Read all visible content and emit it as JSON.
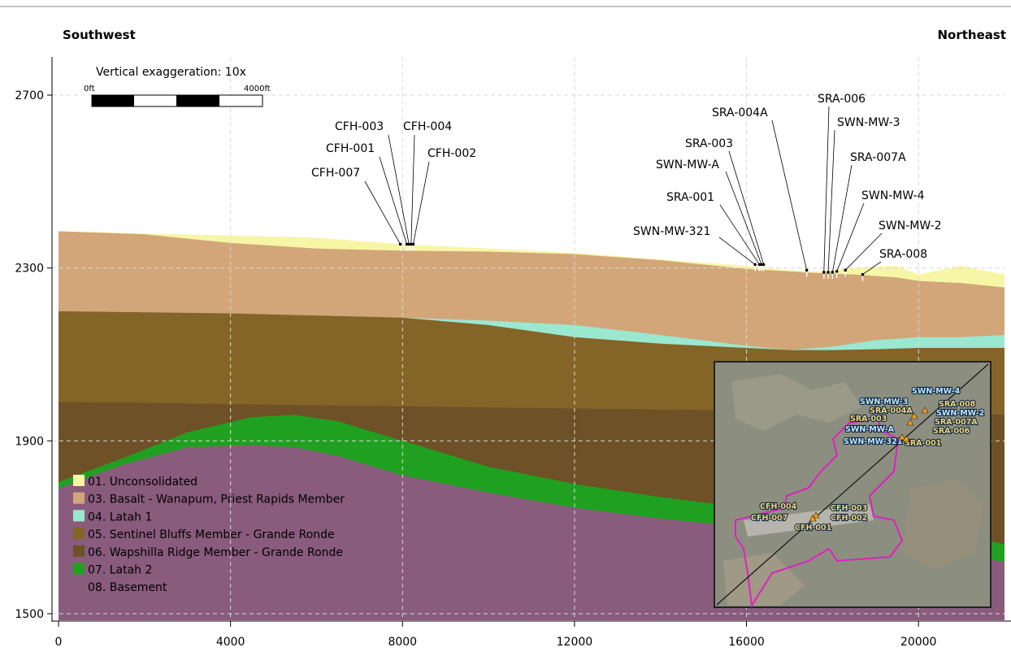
{
  "header": {
    "left_label": "Southwest",
    "right_label": "Northeast"
  },
  "scale_bar": {
    "title": "Vertical exaggeration: 10x",
    "start_label": "0ft",
    "end_label": "4000ft"
  },
  "colors": {
    "unconsolidated": "#f7f6a6",
    "basalt_wanapum": "#d2a679",
    "latah_1": "#9ae8d0",
    "sentinel_bluffs": "#856428",
    "wapshilla_ridge": "#6e5127",
    "latah_2": "#20a020",
    "basement": "#895b7d",
    "inset_boundary": "#e020c0"
  },
  "chart_data": {
    "type": "area",
    "title": "",
    "xlabel": "",
    "ylabel": "",
    "xlim": [
      0,
      22000
    ],
    "ylim": [
      1490,
      2810
    ],
    "x_ticks": [
      0,
      4000,
      8000,
      12000,
      16000,
      20000
    ],
    "y_ticks": [
      1500,
      1900,
      2300,
      2700
    ],
    "grid": true,
    "legend_position": "bottom-left",
    "layers": [
      {
        "name": "01. Unconsolidated",
        "color_key": "unconsolidated",
        "top": [
          [
            0,
            2385
          ],
          [
            2000,
            2380
          ],
          [
            4000,
            2375
          ],
          [
            6000,
            2370
          ],
          [
            8000,
            2355
          ],
          [
            10000,
            2345
          ],
          [
            12000,
            2335
          ],
          [
            14000,
            2320
          ],
          [
            16000,
            2305
          ],
          [
            17000,
            2295
          ],
          [
            17700,
            2292
          ],
          [
            18500,
            2300
          ],
          [
            19500,
            2305
          ],
          [
            20000,
            2285
          ],
          [
            21000,
            2305
          ],
          [
            22000,
            2285
          ]
        ]
      },
      {
        "name": "03. Basalt - Wanapum, Priest Rapids Member",
        "color_key": "basalt_wanapum",
        "top": [
          [
            0,
            2385
          ],
          [
            2000,
            2378
          ],
          [
            4000,
            2358
          ],
          [
            6000,
            2345
          ],
          [
            8000,
            2340
          ],
          [
            10000,
            2338
          ],
          [
            12000,
            2332
          ],
          [
            14000,
            2318
          ],
          [
            16000,
            2298
          ],
          [
            17000,
            2292
          ],
          [
            17700,
            2288
          ],
          [
            18500,
            2285
          ],
          [
            19500,
            2278
          ],
          [
            20000,
            2270
          ],
          [
            21000,
            2265
          ],
          [
            22000,
            2255
          ]
        ]
      },
      {
        "name": "04. Latah 1",
        "color_key": "latah_1",
        "top": [
          [
            0,
            2200
          ],
          [
            4000,
            2195
          ],
          [
            6000,
            2190
          ],
          [
            8000,
            2185
          ],
          [
            10000,
            2178
          ],
          [
            12000,
            2168
          ],
          [
            14000,
            2145
          ],
          [
            16000,
            2120
          ],
          [
            17000,
            2110
          ],
          [
            18000,
            2118
          ],
          [
            19000,
            2133
          ],
          [
            20000,
            2140
          ],
          [
            21000,
            2140
          ],
          [
            22000,
            2145
          ]
        ]
      },
      {
        "name": "05. Sentinel Bluffs Member - Grande Ronde",
        "color_key": "sentinel_bluffs",
        "top": [
          [
            0,
            2200
          ],
          [
            4000,
            2195
          ],
          [
            6000,
            2190
          ],
          [
            8000,
            2185
          ],
          [
            10000,
            2168
          ],
          [
            12000,
            2140
          ],
          [
            14000,
            2125
          ],
          [
            16000,
            2115
          ],
          [
            17000,
            2110
          ],
          [
            18000,
            2110
          ],
          [
            19000,
            2112
          ],
          [
            20000,
            2115
          ],
          [
            21000,
            2115
          ],
          [
            22000,
            2115
          ]
        ]
      },
      {
        "name": "06. Wapshilla Ridge Member - Grande Ronde",
        "color_key": "wapshilla_ridge",
        "top": [
          [
            0,
            1990
          ],
          [
            2000,
            1988
          ],
          [
            4000,
            1985
          ],
          [
            8000,
            1980
          ],
          [
            12000,
            1975
          ],
          [
            16000,
            1970
          ],
          [
            20000,
            1965
          ],
          [
            22000,
            1960
          ]
        ]
      },
      {
        "name": "07. Latah 2",
        "color_key": "latah_2",
        "top": [
          [
            0,
            1805
          ],
          [
            1500,
            1860
          ],
          [
            3000,
            1920
          ],
          [
            4500,
            1955
          ],
          [
            5500,
            1960
          ],
          [
            6500,
            1945
          ],
          [
            8000,
            1900
          ],
          [
            10000,
            1840
          ],
          [
            12000,
            1800
          ],
          [
            14000,
            1770
          ],
          [
            16000,
            1745
          ],
          [
            18000,
            1720
          ],
          [
            20000,
            1700
          ],
          [
            21000,
            1685
          ],
          [
            22000,
            1660
          ]
        ]
      },
      {
        "name": "08. Basement",
        "color_key": "basement",
        "top": [
          [
            0,
            1790
          ],
          [
            1500,
            1845
          ],
          [
            3000,
            1885
          ],
          [
            4500,
            1890
          ],
          [
            5500,
            1885
          ],
          [
            6500,
            1865
          ],
          [
            8000,
            1820
          ],
          [
            10000,
            1780
          ],
          [
            12000,
            1745
          ],
          [
            14000,
            1720
          ],
          [
            16000,
            1700
          ],
          [
            18000,
            1680
          ],
          [
            20000,
            1660
          ],
          [
            21000,
            1635
          ],
          [
            22000,
            1620
          ]
        ]
      }
    ],
    "wells": [
      {
        "label": "CFH-007",
        "x": 7950,
        "y": 2355
      },
      {
        "label": "CFH-001",
        "x": 8100,
        "y": 2355
      },
      {
        "label": "CFH-003",
        "x": 8150,
        "y": 2355
      },
      {
        "label": "CFH-004",
        "x": 8200,
        "y": 2355
      },
      {
        "label": "CFH-002",
        "x": 8250,
        "y": 2355
      },
      {
        "label": "SWN-MW-321",
        "x": 16200,
        "y": 2308
      },
      {
        "label": "SRA-001",
        "x": 16300,
        "y": 2308
      },
      {
        "label": "SWN-MW-A",
        "x": 16350,
        "y": 2308
      },
      {
        "label": "SRA-003",
        "x": 16400,
        "y": 2308
      },
      {
        "label": "SRA-004A",
        "x": 17400,
        "y": 2295
      },
      {
        "label": "SRA-006",
        "x": 17800,
        "y": 2290
      },
      {
        "label": "SWN-MW-3",
        "x": 17900,
        "y": 2290
      },
      {
        "label": "SRA-007A",
        "x": 18000,
        "y": 2290
      },
      {
        "label": "SWN-MW-4",
        "x": 18100,
        "y": 2292
      },
      {
        "label": "SWN-MW-2",
        "x": 18300,
        "y": 2295
      },
      {
        "label": "SRA-008",
        "x": 18700,
        "y": 2285
      }
    ]
  },
  "inset_map": {
    "labels": [
      {
        "text": "SWN-MW-4",
        "style": "blue"
      },
      {
        "text": "SWN-MW-3",
        "style": "blue"
      },
      {
        "text": "SRA-004A",
        "style": "gold"
      },
      {
        "text": "SRA-003",
        "style": "gold"
      },
      {
        "text": "SRA-008",
        "style": "gold"
      },
      {
        "text": "SWN-MW-2",
        "style": "blue"
      },
      {
        "text": "SRA-007A",
        "style": "gold"
      },
      {
        "text": "SRA-006",
        "style": "gold"
      },
      {
        "text": "SWN-MW-A",
        "style": "blue"
      },
      {
        "text": "SWN-MW-321",
        "style": "blue"
      },
      {
        "text": "SRA-001",
        "style": "gold"
      },
      {
        "text": "CFH-004",
        "style": "gold"
      },
      {
        "text": "CFH-003",
        "style": "gold"
      },
      {
        "text": "CFH-007",
        "style": "gold"
      },
      {
        "text": "CFH-002",
        "style": "gold"
      },
      {
        "text": "CFH-001",
        "style": "gold"
      }
    ]
  }
}
